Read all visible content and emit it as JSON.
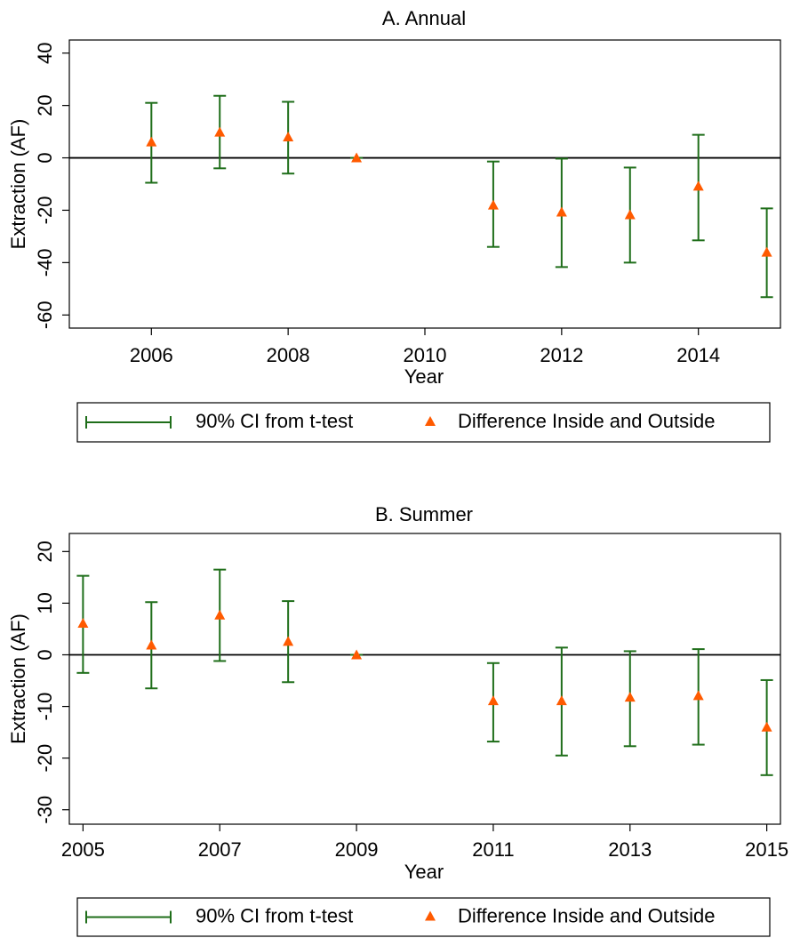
{
  "chart_data": [
    {
      "type": "scatter",
      "title": "A. Annual",
      "xlabel": "Year",
      "ylabel": "Extraction (AF)",
      "x": [
        2006,
        2007,
        2008,
        2009,
        2011,
        2012,
        2013,
        2014,
        2015
      ],
      "series": [
        {
          "name": "90% CI from t-test",
          "color": "#1f6e1a",
          "lower": [
            -9.5,
            -4,
            -6,
            0,
            -34,
            -41.7,
            -40,
            -31.5,
            -53.2
          ],
          "upper": [
            21,
            23.7,
            21.4,
            0,
            -1.4,
            -0.3,
            -3.7,
            8.8,
            -19.3
          ]
        },
        {
          "name": "Difference Inside and Outside",
          "color": "#ff5a00",
          "values": [
            6.1,
            9.8,
            8,
            0,
            -18,
            -20.7,
            -21.7,
            -10.8,
            -36
          ]
        }
      ],
      "reference_line": 0,
      "xlim": [
        2004.8,
        2015.2
      ],
      "xticks": [
        2006,
        2008,
        2010,
        2012,
        2014
      ],
      "ylim": [
        -65,
        45
      ],
      "yticks": [
        -60,
        -40,
        -20,
        0,
        20,
        40
      ]
    },
    {
      "type": "scatter",
      "title": "B. Summer",
      "xlabel": "Year",
      "ylabel": "Extraction (AF)",
      "x": [
        2005,
        2006,
        2007,
        2008,
        2009,
        2011,
        2012,
        2013,
        2014,
        2015
      ],
      "series": [
        {
          "name": "90% CI from t-test",
          "color": "#1f6e1a",
          "lower": [
            -3.5,
            -6.5,
            -1.2,
            -5.3,
            0,
            -16.8,
            -19.5,
            -17.7,
            -17.4,
            -23.3
          ],
          "upper": [
            15.3,
            10.2,
            16.5,
            10.4,
            0,
            -1.6,
            1.4,
            0.7,
            1.1,
            -4.9
          ]
        },
        {
          "name": "Difference Inside and Outside",
          "color": "#ff5a00",
          "values": [
            6.1,
            1.9,
            7.7,
            2.6,
            0,
            -8.9,
            -8.9,
            -8.2,
            -7.9,
            -14
          ]
        }
      ],
      "reference_line": 0,
      "xlim": [
        2004.8,
        2015.2
      ],
      "xticks": [
        2005,
        2007,
        2009,
        2011,
        2013,
        2015
      ],
      "ylim": [
        -32.8,
        23.5
      ],
      "yticks": [
        -30,
        -20,
        -10,
        0,
        10,
        20
      ]
    }
  ]
}
